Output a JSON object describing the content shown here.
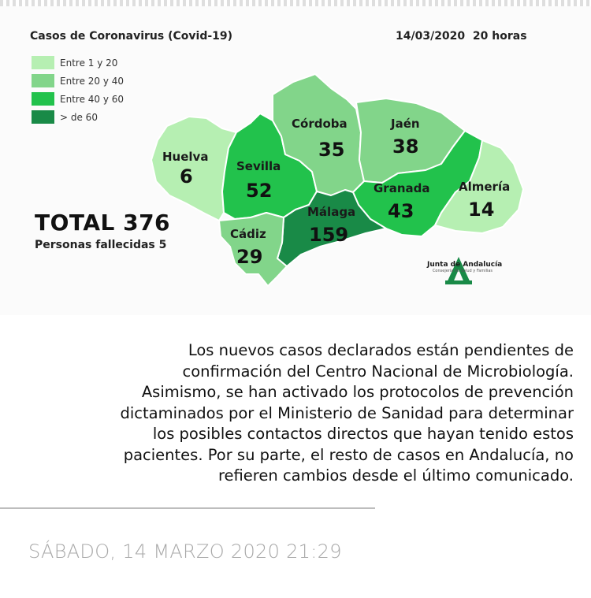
{
  "map": {
    "title": "Casos de Coronavirus (Covid-19)",
    "date": "14/03/2020",
    "time": "20 horas",
    "legend": [
      {
        "label": "Entre 1 y 20",
        "color": "#b6efb2"
      },
      {
        "label": "Entre 20 y 40",
        "color": "#82d58a"
      },
      {
        "label": "Entre 40 y 60",
        "color": "#22c24c"
      },
      {
        "label": "> de 60",
        "color": "#198a47"
      }
    ],
    "total": "TOTAL 376",
    "deaths": "Personas fallecidas 5",
    "provinces": [
      {
        "name": "Huelva",
        "count": "6",
        "color": "#b6efb2"
      },
      {
        "name": "Sevilla",
        "count": "52",
        "color": "#22c24c"
      },
      {
        "name": "Córdoba",
        "count": "35",
        "color": "#82d58a"
      },
      {
        "name": "Jaén",
        "count": "38",
        "color": "#82d58a"
      },
      {
        "name": "Granada",
        "count": "43",
        "color": "#22c24c"
      },
      {
        "name": "Almería",
        "count": "14",
        "color": "#b6efb2"
      },
      {
        "name": "Málaga",
        "count": "159",
        "color": "#198a47"
      },
      {
        "name": "Cádiz",
        "count": "29",
        "color": "#82d58a"
      }
    ],
    "logo": {
      "name": "Junta de Andalucía",
      "subtitle": "Consejería de Salud y Familias",
      "color": "#198a47"
    }
  },
  "article": {
    "lines": [
      "Los nuevos casos declarados están pendientes de",
      "confirmación del Centro Nacional de Microbiología.",
      "Asimismo, se han activado los protocolos de prevención",
      "dictaminados por el Ministerio de Sanidad para determinar",
      "los posibles contactos directos que hayan tenido estos",
      "pacientes. Por su parte, el resto de casos en Andalucía, no",
      "refieren cambios desde el último comunicado."
    ]
  },
  "footer": {
    "timestamp": "SÁBADO, 14 MARZO 2020 21:29"
  }
}
